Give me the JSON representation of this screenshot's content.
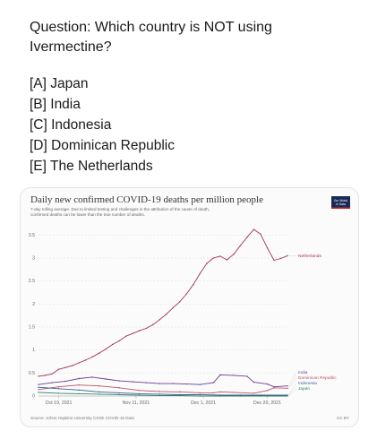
{
  "question": {
    "text": "Question: Which country is NOT using Ivermectine?",
    "options": [
      "[A] Japan",
      "[B] India",
      "[C] Indonesia",
      "[D] Dominican Republic",
      "[E] The Netherlands"
    ]
  },
  "logo": {
    "line1": "Our World",
    "line2": "in Data",
    "bg_color": "#1a2a56"
  },
  "footer": {
    "source": "Source: Johns Hopkins University CSSE COVID-19 Data",
    "license": "CC BY"
  },
  "chart_data": {
    "type": "line",
    "title": "Daily new confirmed COVID-19 deaths per million people",
    "subtitle": "7-day rolling average. Due to limited testing and challenges in the attribution of the cause of death, confirmed deaths can be lower than the true number of deaths.",
    "xlabel": "",
    "ylabel": "",
    "ylim": [
      0,
      3.7
    ],
    "yticks": [
      0,
      0.5,
      1,
      1.5,
      2,
      2.5,
      3,
      3.5
    ],
    "ytick_labels": [
      "0",
      "0.5",
      "1",
      "1.5",
      "2",
      "2.5",
      "3",
      "3.5"
    ],
    "x_dates": [
      "2021-10-13",
      "2021-12-26"
    ],
    "xticks": [
      "2021-10-19",
      "2021-11-11",
      "2021-12-01",
      "2021-12-20"
    ],
    "xtick_labels": [
      "Oct 19, 2021",
      "Nov 11, 2021",
      "Dec 1, 2021",
      "Dec 20, 2021"
    ],
    "grid": true,
    "series": [
      {
        "name": "Netherlands",
        "color": "#a4325a",
        "points": [
          [
            "2021-10-13",
            0.43
          ],
          [
            "2021-10-15",
            0.45
          ],
          [
            "2021-10-17",
            0.48
          ],
          [
            "2021-10-19",
            0.58
          ],
          [
            "2021-10-21",
            0.62
          ],
          [
            "2021-10-23",
            0.66
          ],
          [
            "2021-10-25",
            0.72
          ],
          [
            "2021-10-27",
            0.78
          ],
          [
            "2021-10-29",
            0.85
          ],
          [
            "2021-10-31",
            0.93
          ],
          [
            "2021-11-02",
            1.02
          ],
          [
            "2021-11-04",
            1.12
          ],
          [
            "2021-11-06",
            1.2
          ],
          [
            "2021-11-08",
            1.3
          ],
          [
            "2021-11-10",
            1.36
          ],
          [
            "2021-11-12",
            1.42
          ],
          [
            "2021-11-14",
            1.47
          ],
          [
            "2021-11-16",
            1.55
          ],
          [
            "2021-11-18",
            1.66
          ],
          [
            "2021-11-20",
            1.78
          ],
          [
            "2021-11-22",
            1.92
          ],
          [
            "2021-11-24",
            2.05
          ],
          [
            "2021-11-26",
            2.22
          ],
          [
            "2021-11-28",
            2.42
          ],
          [
            "2021-11-30",
            2.66
          ],
          [
            "2021-12-02",
            2.88
          ],
          [
            "2021-12-04",
            3.0
          ],
          [
            "2021-12-06",
            3.04
          ],
          [
            "2021-12-08",
            2.96
          ],
          [
            "2021-12-10",
            3.08
          ],
          [
            "2021-12-12",
            3.27
          ],
          [
            "2021-12-14",
            3.45
          ],
          [
            "2021-12-16",
            3.62
          ],
          [
            "2021-12-18",
            3.52
          ],
          [
            "2021-12-20",
            3.22
          ],
          [
            "2021-12-22",
            2.95
          ],
          [
            "2021-12-24",
            2.99
          ],
          [
            "2021-12-26",
            3.05
          ]
        ]
      },
      {
        "name": "India",
        "color": "#6d3e91",
        "points": [
          [
            "2021-10-13",
            0.25
          ],
          [
            "2021-10-17",
            0.29
          ],
          [
            "2021-10-21",
            0.32
          ],
          [
            "2021-10-25",
            0.38
          ],
          [
            "2021-10-29",
            0.41
          ],
          [
            "2021-11-02",
            0.37
          ],
          [
            "2021-11-06",
            0.33
          ],
          [
            "2021-11-10",
            0.31
          ],
          [
            "2021-11-14",
            0.29
          ],
          [
            "2021-11-18",
            0.27
          ],
          [
            "2021-11-22",
            0.27
          ],
          [
            "2021-11-26",
            0.26
          ],
          [
            "2021-11-30",
            0.25
          ],
          [
            "2021-12-04",
            0.29
          ],
          [
            "2021-12-06",
            0.46
          ],
          [
            "2021-12-10",
            0.45
          ],
          [
            "2021-12-14",
            0.43
          ],
          [
            "2021-12-16",
            0.3
          ],
          [
            "2021-12-20",
            0.26
          ],
          [
            "2021-12-22",
            0.2
          ],
          [
            "2021-12-26",
            0.22
          ]
        ]
      },
      {
        "name": "Dominican Republic",
        "color": "#c15065",
        "points": [
          [
            "2021-10-13",
            0.14
          ],
          [
            "2021-10-19",
            0.2
          ],
          [
            "2021-10-25",
            0.24
          ],
          [
            "2021-10-31",
            0.22
          ],
          [
            "2021-11-06",
            0.18
          ],
          [
            "2021-11-12",
            0.12
          ],
          [
            "2021-11-18",
            0.1
          ],
          [
            "2021-11-24",
            0.09
          ],
          [
            "2021-11-30",
            0.07
          ],
          [
            "2021-12-04",
            0.07
          ],
          [
            "2021-12-06",
            0.09
          ],
          [
            "2021-12-10",
            0.08
          ],
          [
            "2021-12-16",
            0.06
          ],
          [
            "2021-12-20",
            0.12
          ],
          [
            "2021-12-22",
            0.18
          ],
          [
            "2021-12-26",
            0.17
          ]
        ]
      },
      {
        "name": "Indonesia",
        "color": "#3a5f98",
        "points": [
          [
            "2021-10-13",
            0.19
          ],
          [
            "2021-10-19",
            0.16
          ],
          [
            "2021-10-25",
            0.13
          ],
          [
            "2021-10-31",
            0.09
          ],
          [
            "2021-11-06",
            0.07
          ],
          [
            "2021-11-12",
            0.05
          ],
          [
            "2021-11-18",
            0.04
          ],
          [
            "2021-11-24",
            0.03
          ],
          [
            "2021-11-30",
            0.03
          ],
          [
            "2021-12-06",
            0.02
          ],
          [
            "2021-12-12",
            0.02
          ],
          [
            "2021-12-18",
            0.02
          ],
          [
            "2021-12-26",
            0.02
          ]
        ]
      },
      {
        "name": "Japan",
        "color": "#2c8465",
        "points": [
          [
            "2021-10-13",
            0.08
          ],
          [
            "2021-10-19",
            0.06
          ],
          [
            "2021-10-25",
            0.05
          ],
          [
            "2021-10-31",
            0.04
          ],
          [
            "2021-11-06",
            0.03
          ],
          [
            "2021-11-12",
            0.02
          ],
          [
            "2021-11-18",
            0.01
          ],
          [
            "2021-11-24",
            0.01
          ],
          [
            "2021-11-30",
            0.0
          ],
          [
            "2021-12-06",
            0.0
          ],
          [
            "2021-12-12",
            0.0
          ],
          [
            "2021-12-18",
            0.0
          ],
          [
            "2021-12-26",
            0.0
          ]
        ]
      }
    ]
  }
}
